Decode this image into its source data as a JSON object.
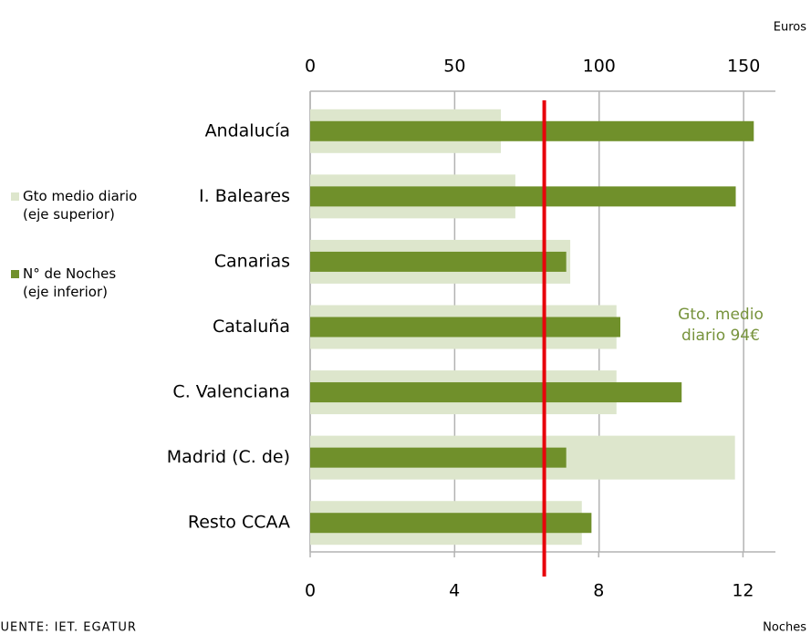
{
  "chart_data": {
    "type": "bar",
    "orientation": "horizontal",
    "categories": [
      "Andalucía",
      "I. Baleares",
      "Canarias",
      "Cataluña",
      "C. Valenciana",
      "Madrid (C. de)",
      "Resto CCAA"
    ],
    "series": [
      {
        "name": "Gto medio diario (eje superior)",
        "color": "#dde6cc",
        "axis": "x",
        "values": [
          66,
          71,
          90,
          106,
          106,
          147,
          94
        ]
      },
      {
        "name": "N° de Noches (eje inferior)",
        "color": "#70902b",
        "axis": "x2",
        "values": [
          12.3,
          11.8,
          7.1,
          8.6,
          10.3,
          7.1,
          7.8
        ]
      }
    ],
    "xlabel": "Euros",
    "x2label": "Noches",
    "xlim": [
      0,
      161
    ],
    "xticks": [
      0,
      50,
      100,
      150
    ],
    "x2lim": [
      0,
      12.9
    ],
    "x2ticks": [
      0,
      4,
      8,
      12
    ],
    "reference_line": {
      "value": 81,
      "axis": "x",
      "color": "#e8000b"
    },
    "annotation": "Gto. medio diario 94€",
    "annotation_color": "#77933c",
    "source": "FUENTE: IET. EGATUR",
    "grid": true
  }
}
